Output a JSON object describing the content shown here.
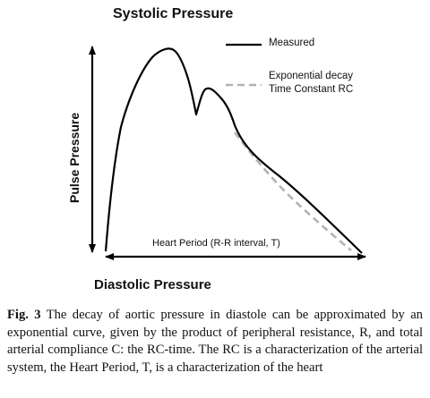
{
  "diagram": {
    "top_label": "Systolic Pressure",
    "bottom_label": "Diastolic Pressure",
    "y_axis_label": "Pulse Pressure",
    "period_label": "Heart Period (R-R interval, T)",
    "legend": {
      "measured": "Measured",
      "decay_line1": "Exponential decay",
      "decay_line2": "Time Constant RC"
    },
    "colors": {
      "measured": "#000000",
      "decay": "#b3b3b3"
    }
  },
  "caption": {
    "label": "Fig. 3",
    "text": "The decay of aortic pressure in diastole can be approximated by an exponential curve, given by the product of peripheral resistance, R, and total arterial compliance C: the RC-time. The RC is a characterization of the arterial system, the Heart Period, T, is a characterization of the heart"
  }
}
